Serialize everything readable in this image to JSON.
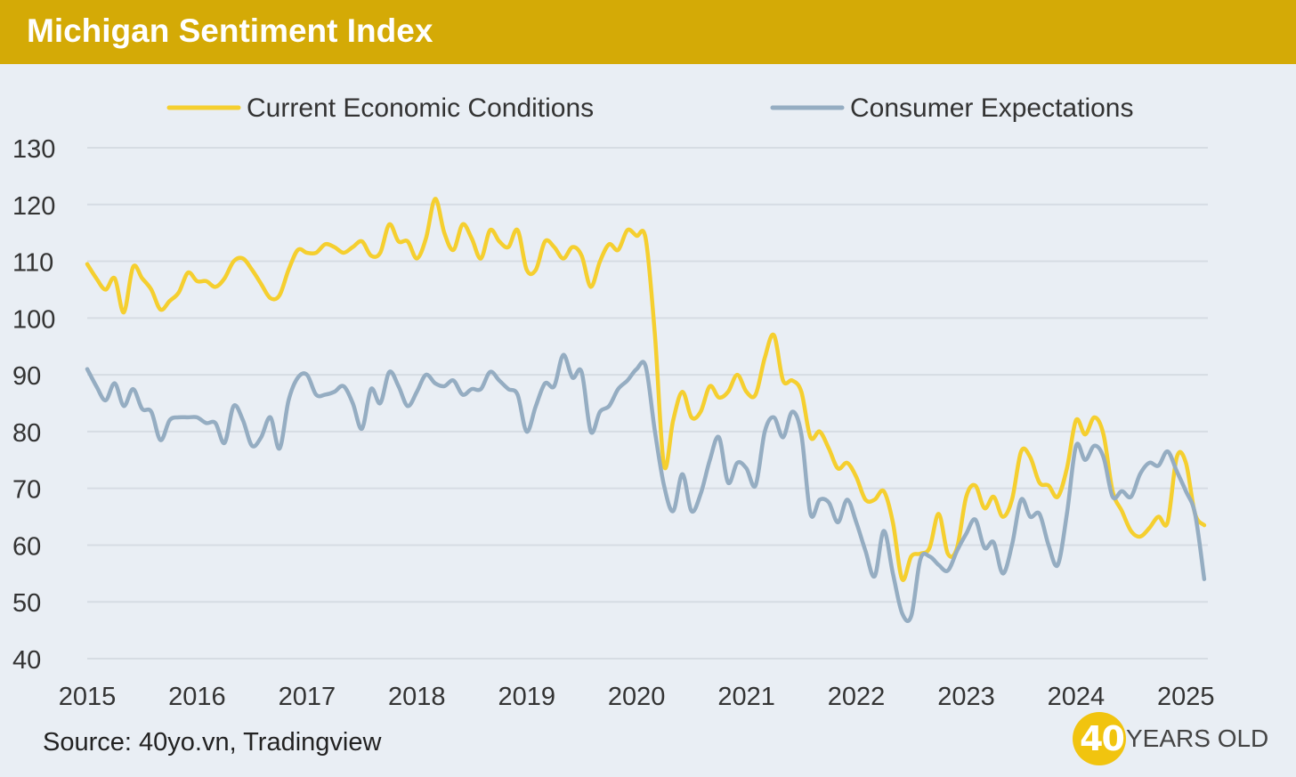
{
  "header": {
    "title": "Michigan Sentiment Index"
  },
  "footer": {
    "source": "Source: 40yo.vn, Tradingview"
  },
  "brand": {
    "number": "40",
    "text": "YEARS OLD",
    "circle_color": "#f1c40f"
  },
  "chart_data": {
    "type": "line",
    "title": "Michigan Sentiment Index",
    "xlabel": "",
    "ylabel": "",
    "xlim": [
      2015,
      2025.2
    ],
    "ylim": [
      40,
      130
    ],
    "yticks": [
      40,
      50,
      60,
      70,
      80,
      90,
      100,
      110,
      120,
      130
    ],
    "xticks": [
      2015,
      2016,
      2017,
      2018,
      2019,
      2020,
      2021,
      2022,
      2023,
      2024,
      2025
    ],
    "grid": true,
    "legend": "top",
    "series": [
      {
        "name": "Current Economic Conditions",
        "color": "#f5cf2f",
        "x": [
          2015.0,
          2015.083,
          2015.167,
          2015.25,
          2015.333,
          2015.417,
          2015.5,
          2015.583,
          2015.667,
          2015.75,
          2015.833,
          2015.917,
          2016.0,
          2016.083,
          2016.167,
          2016.25,
          2016.333,
          2016.417,
          2016.5,
          2016.583,
          2016.667,
          2016.75,
          2016.833,
          2016.917,
          2017.0,
          2017.083,
          2017.167,
          2017.25,
          2017.333,
          2017.417,
          2017.5,
          2017.583,
          2017.667,
          2017.75,
          2017.833,
          2017.917,
          2018.0,
          2018.083,
          2018.167,
          2018.25,
          2018.333,
          2018.417,
          2018.5,
          2018.583,
          2018.667,
          2018.75,
          2018.833,
          2018.917,
          2019.0,
          2019.083,
          2019.167,
          2019.25,
          2019.333,
          2019.417,
          2019.5,
          2019.583,
          2019.667,
          2019.75,
          2019.833,
          2019.917,
          2020.0,
          2020.083,
          2020.167,
          2020.25,
          2020.333,
          2020.417,
          2020.5,
          2020.583,
          2020.667,
          2020.75,
          2020.833,
          2020.917,
          2021.0,
          2021.083,
          2021.167,
          2021.25,
          2021.333,
          2021.417,
          2021.5,
          2021.583,
          2021.667,
          2021.75,
          2021.833,
          2021.917,
          2022.0,
          2022.083,
          2022.167,
          2022.25,
          2022.333,
          2022.417,
          2022.5,
          2022.583,
          2022.667,
          2022.75,
          2022.833,
          2022.917,
          2023.0,
          2023.083,
          2023.167,
          2023.25,
          2023.333,
          2023.417,
          2023.5,
          2023.583,
          2023.667,
          2023.75,
          2023.833,
          2023.917,
          2024.0,
          2024.083,
          2024.167,
          2024.25,
          2024.333,
          2024.417,
          2024.5,
          2024.583,
          2024.667,
          2024.75,
          2024.833,
          2024.917,
          2025.0,
          2025.083,
          2025.167
        ],
        "values": [
          109.5,
          107.0,
          105.0,
          107.0,
          101.0,
          109.0,
          107.0,
          105.0,
          101.5,
          103.0,
          104.5,
          108.0,
          106.5,
          106.5,
          105.5,
          107.0,
          110.0,
          110.5,
          108.5,
          106.0,
          103.5,
          104.0,
          108.5,
          112.0,
          111.5,
          111.5,
          113.0,
          112.5,
          111.5,
          112.5,
          113.5,
          111.0,
          111.5,
          116.5,
          113.5,
          113.5,
          110.5,
          114.0,
          121.0,
          115.0,
          112.0,
          116.5,
          114.0,
          110.5,
          115.5,
          113.5,
          112.5,
          115.5,
          108.5,
          108.5,
          113.5,
          112.5,
          110.5,
          112.5,
          111.0,
          105.5,
          110.0,
          113.0,
          112.0,
          115.5,
          114.5,
          114.0,
          97.0,
          74.0,
          82.0,
          87.0,
          82.5,
          83.5,
          88.0,
          86.0,
          87.0,
          90.0,
          87.0,
          86.5,
          93.0,
          97.0,
          89.0,
          89.0,
          87.0,
          79.0,
          80.0,
          77.0,
          73.5,
          74.5,
          72.0,
          68.0,
          68.0,
          69.5,
          64.0,
          54.0,
          58.0,
          58.5,
          59.5,
          65.5,
          58.5,
          59.5,
          68.5,
          70.5,
          66.5,
          68.5,
          65.0,
          68.0,
          76.5,
          75.5,
          71.0,
          70.5,
          68.5,
          73.5,
          82.0,
          79.5,
          82.5,
          79.5,
          69.5,
          66.0,
          62.5,
          61.5,
          63.0,
          65.0,
          64.0,
          75.5,
          74.5,
          65.5,
          63.5
        ]
      },
      {
        "name": "Consumer Expectations",
        "color": "#95adc2",
        "x": [
          2015.0,
          2015.083,
          2015.167,
          2015.25,
          2015.333,
          2015.417,
          2015.5,
          2015.583,
          2015.667,
          2015.75,
          2015.833,
          2015.917,
          2016.0,
          2016.083,
          2016.167,
          2016.25,
          2016.333,
          2016.417,
          2016.5,
          2016.583,
          2016.667,
          2016.75,
          2016.833,
          2016.917,
          2017.0,
          2017.083,
          2017.167,
          2017.25,
          2017.333,
          2017.417,
          2017.5,
          2017.583,
          2017.667,
          2017.75,
          2017.833,
          2017.917,
          2018.0,
          2018.083,
          2018.167,
          2018.25,
          2018.333,
          2018.417,
          2018.5,
          2018.583,
          2018.667,
          2018.75,
          2018.833,
          2018.917,
          2019.0,
          2019.083,
          2019.167,
          2019.25,
          2019.333,
          2019.417,
          2019.5,
          2019.583,
          2019.667,
          2019.75,
          2019.833,
          2019.917,
          2020.0,
          2020.083,
          2020.167,
          2020.25,
          2020.333,
          2020.417,
          2020.5,
          2020.583,
          2020.667,
          2020.75,
          2020.833,
          2020.917,
          2021.0,
          2021.083,
          2021.167,
          2021.25,
          2021.333,
          2021.417,
          2021.5,
          2021.583,
          2021.667,
          2021.75,
          2021.833,
          2021.917,
          2022.0,
          2022.083,
          2022.167,
          2022.25,
          2022.333,
          2022.417,
          2022.5,
          2022.583,
          2022.667,
          2022.75,
          2022.833,
          2022.917,
          2023.0,
          2023.083,
          2023.167,
          2023.25,
          2023.333,
          2023.417,
          2023.5,
          2023.583,
          2023.667,
          2023.75,
          2023.833,
          2023.917,
          2024.0,
          2024.083,
          2024.167,
          2024.25,
          2024.333,
          2024.417,
          2024.5,
          2024.583,
          2024.667,
          2024.75,
          2024.833,
          2024.917,
          2025.0,
          2025.083,
          2025.167
        ],
        "values": [
          91.0,
          88.0,
          85.5,
          88.5,
          84.5,
          87.5,
          84.0,
          83.5,
          78.5,
          82.0,
          82.5,
          82.5,
          82.5,
          81.5,
          81.5,
          78.0,
          84.5,
          82.0,
          77.5,
          79.0,
          82.5,
          77.0,
          85.5,
          89.5,
          90.0,
          86.5,
          86.5,
          87.0,
          88.0,
          85.0,
          80.5,
          87.5,
          85.0,
          90.5,
          88.0,
          84.5,
          87.0,
          90.0,
          88.5,
          88.0,
          89.0,
          86.5,
          87.5,
          87.5,
          90.5,
          89.0,
          87.5,
          86.5,
          80.0,
          84.5,
          88.5,
          88.0,
          93.5,
          89.5,
          90.5,
          80.0,
          83.5,
          84.5,
          87.5,
          89.0,
          91.0,
          91.5,
          80.0,
          70.5,
          66.0,
          72.5,
          66.0,
          69.0,
          75.0,
          79.0,
          71.0,
          74.5,
          73.5,
          70.5,
          80.0,
          82.5,
          79.0,
          83.5,
          79.5,
          65.5,
          68.0,
          67.5,
          64.0,
          68.0,
          64.0,
          59.0,
          54.5,
          62.5,
          55.0,
          48.0,
          47.5,
          57.5,
          58.0,
          56.5,
          55.5,
          59.0,
          62.0,
          64.5,
          59.5,
          60.5,
          55.0,
          60.0,
          68.0,
          65.0,
          65.5,
          60.0,
          56.5,
          65.5,
          77.5,
          75.0,
          77.5,
          75.5,
          68.5,
          69.5,
          68.5,
          72.5,
          74.5,
          74.0,
          76.5,
          73.0,
          69.5,
          65.5,
          54.0
        ]
      }
    ]
  }
}
